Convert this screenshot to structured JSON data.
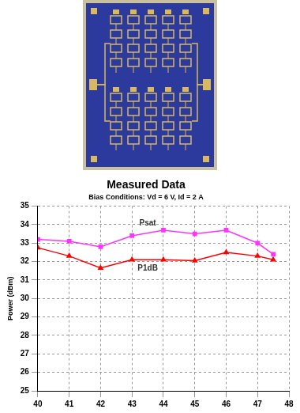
{
  "chart_data": {
    "type": "line",
    "title": "Measured Data",
    "subtitle": "Bias Conditions: Vd = 6 V, Id = 2 A",
    "y_label": "Power (dBm)",
    "x": [
      40,
      41,
      42,
      43,
      44,
      45,
      46,
      47,
      47.5
    ],
    "series": [
      {
        "name": "Psat",
        "color": "#ff33ff",
        "marker": "square",
        "values": [
          33.2,
          33.1,
          32.8,
          33.4,
          33.7,
          33.5,
          33.7,
          33.0,
          32.4
        ]
      },
      {
        "name": "P1dB",
        "color": "#ff0000",
        "marker": "triangle",
        "values": [
          32.75,
          32.3,
          31.65,
          32.1,
          32.1,
          32.05,
          32.5,
          32.3,
          32.1
        ]
      }
    ],
    "xlim": [
      40,
      48
    ],
    "xticks": [
      40,
      41,
      42,
      43,
      44,
      45,
      46,
      47,
      48
    ],
    "ylim": [
      25,
      35
    ],
    "yticks": [
      25,
      26,
      27,
      28,
      29,
      30,
      31,
      32,
      33,
      34,
      35
    ],
    "grid": true
  }
}
